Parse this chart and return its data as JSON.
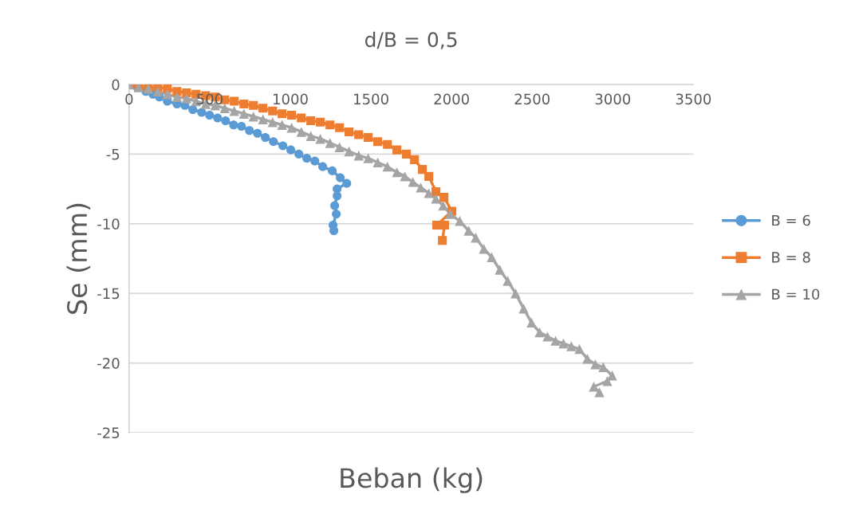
{
  "chart_data": {
    "type": "line",
    "title": "d/B = 0,5",
    "xlabel": "Beban (kg)",
    "ylabel": "Se (mm)",
    "xlim": [
      0,
      3500
    ],
    "xticks": [
      0,
      500,
      1000,
      1500,
      2000,
      2500,
      3000,
      3500
    ],
    "ylim": [
      -25,
      0
    ],
    "yticks": [
      -25,
      -20,
      -15,
      -10,
      -5,
      0
    ],
    "grid": "y",
    "legend": "right",
    "line_style": "solid",
    "series": [
      {
        "name": "B = 6",
        "color": "#5b9bd5",
        "marker": "circle",
        "x": [
          0,
          50,
          104,
          148,
          188,
          237,
          297,
          346,
          395,
          450,
          499,
          549,
          598,
          648,
          697,
          746,
          796,
          845,
          895,
          954,
          1003,
          1053,
          1102,
          1152,
          1201,
          1260,
          1310,
          1350,
          1290,
          1290,
          1275,
          1285,
          1265,
          1270
        ],
        "values": [
          0,
          -0.2,
          -0.5,
          -0.7,
          -0.9,
          -1.2,
          -1.4,
          -1.5,
          -1.8,
          -2.0,
          -2.2,
          -2.4,
          -2.6,
          -2.9,
          -3.0,
          -3.3,
          -3.5,
          -3.8,
          -4.1,
          -4.4,
          -4.7,
          -5.0,
          -5.3,
          -5.5,
          -5.9,
          -6.2,
          -6.7,
          -7.1,
          -7.5,
          -8.0,
          -8.7,
          -9.3,
          -10.1,
          -10.5
        ]
      },
      {
        "name": "B = 8",
        "color": "#ed7d31",
        "marker": "square",
        "x": [
          0,
          59,
          119,
          178,
          237,
          297,
          356,
          415,
          475,
          534,
          593,
          652,
          712,
          771,
          830,
          890,
          949,
          1008,
          1068,
          1127,
          1186,
          1246,
          1305,
          1364,
          1424,
          1483,
          1542,
          1602,
          1661,
          1720,
          1770,
          1819,
          1859,
          1903,
          1953,
          2002,
          1908,
          1957,
          1943
        ],
        "values": [
          0,
          -0.1,
          -0.2,
          -0.2,
          -0.3,
          -0.5,
          -0.6,
          -0.7,
          -0.8,
          -0.9,
          -1.1,
          -1.2,
          -1.4,
          -1.5,
          -1.7,
          -1.9,
          -2.1,
          -2.2,
          -2.4,
          -2.6,
          -2.7,
          -2.9,
          -3.1,
          -3.4,
          -3.6,
          -3.8,
          -4.1,
          -4.3,
          -4.7,
          -5.0,
          -5.4,
          -6.1,
          -6.6,
          -7.7,
          -8.1,
          -9.1,
          -10.1,
          -10.1,
          -11.2
        ]
      },
      {
        "name": "B = 10",
        "color": "#a5a5a5",
        "marker": "triangle",
        "x": [
          0,
          59,
          119,
          178,
          237,
          297,
          356,
          415,
          475,
          534,
          593,
          652,
          712,
          771,
          830,
          890,
          949,
          1008,
          1068,
          1127,
          1186,
          1246,
          1305,
          1364,
          1424,
          1483,
          1542,
          1602,
          1661,
          1710,
          1760,
          1809,
          1859,
          1903,
          1948,
          1992,
          2051,
          2106,
          2150,
          2200,
          2249,
          2299,
          2348,
          2397,
          2447,
          2496,
          2546,
          2595,
          2645,
          2694,
          2743,
          2793,
          2842,
          2892,
          2941,
          2996,
          2966,
          2882,
          2917
        ],
        "values": [
          0,
          -0.2,
          -0.3,
          -0.5,
          -0.7,
          -0.9,
          -1.0,
          -1.2,
          -1.4,
          -1.5,
          -1.7,
          -1.9,
          -2.1,
          -2.3,
          -2.5,
          -2.7,
          -2.9,
          -3.1,
          -3.4,
          -3.7,
          -3.9,
          -4.2,
          -4.5,
          -4.8,
          -5.1,
          -5.3,
          -5.6,
          -5.9,
          -6.3,
          -6.6,
          -7.0,
          -7.4,
          -7.8,
          -8.2,
          -8.7,
          -9.3,
          -9.8,
          -10.5,
          -11.0,
          -11.8,
          -12.4,
          -13.3,
          -14.1,
          -15.0,
          -16.1,
          -17.1,
          -17.8,
          -18.1,
          -18.4,
          -18.6,
          -18.8,
          -19.0,
          -19.7,
          -20.1,
          -20.3,
          -20.9,
          -21.3,
          -21.7,
          -22.1
        ]
      }
    ]
  }
}
